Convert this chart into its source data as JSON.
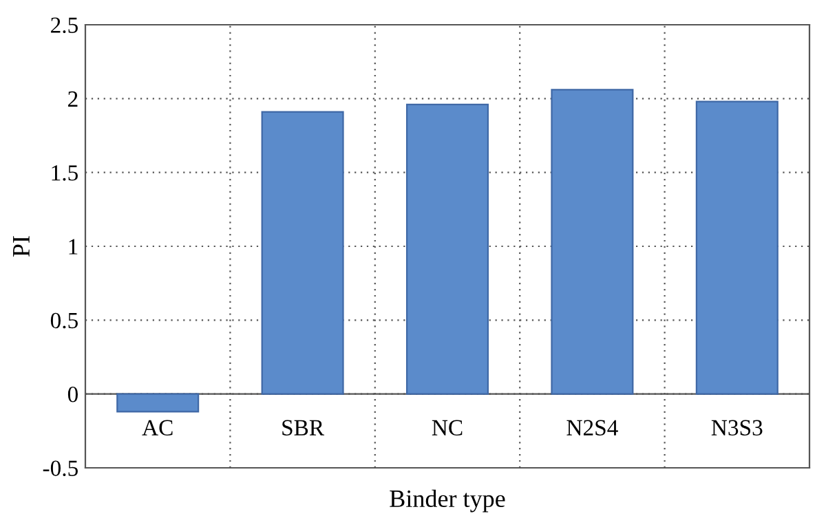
{
  "chart_data": {
    "type": "bar",
    "xlabel": "Binder type",
    "ylabel": "PI",
    "categories": [
      "AC",
      "SBR",
      "NC",
      "N2S4",
      "N3S3"
    ],
    "values": [
      -0.12,
      1.91,
      1.96,
      2.06,
      1.98
    ],
    "color": "#5b8bcb",
    "ylim": [
      -0.5,
      2.5
    ],
    "yticks": [
      -0.5,
      0,
      0.5,
      1,
      1.5,
      2,
      2.5
    ],
    "grid": true,
    "legend": false
  }
}
